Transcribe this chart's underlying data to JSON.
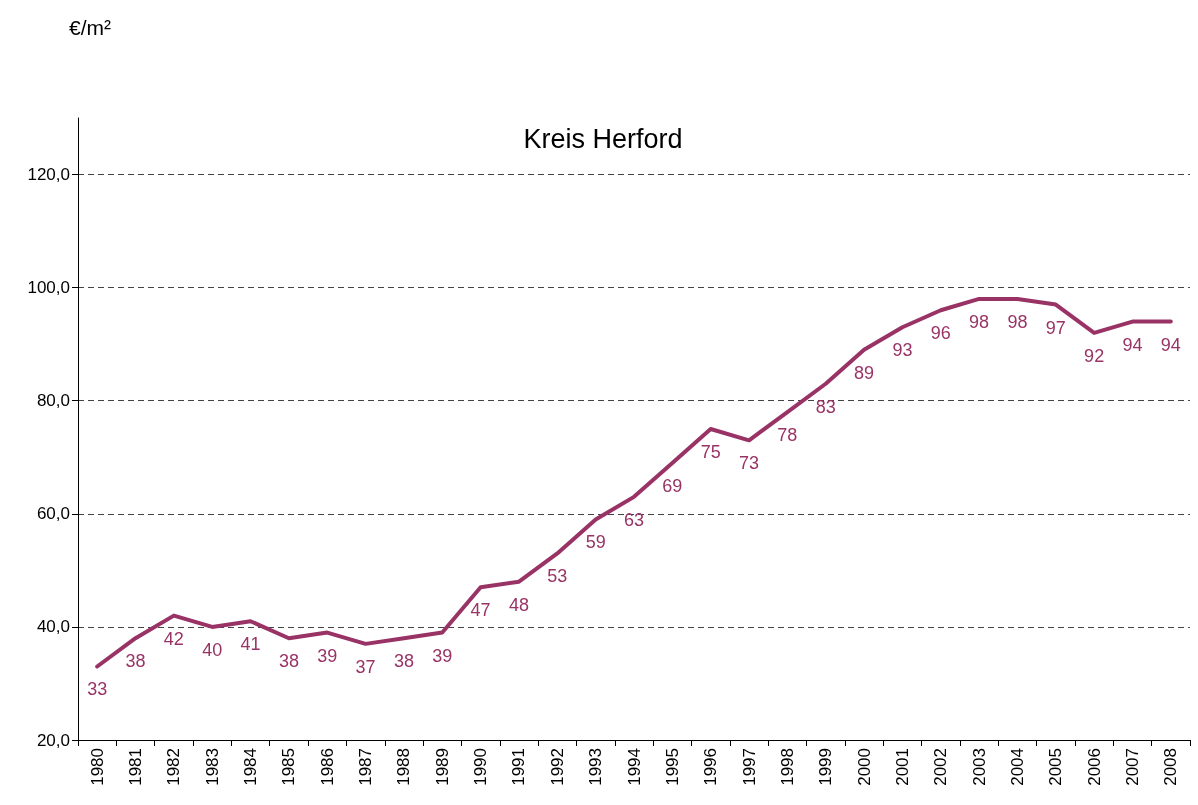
{
  "chart_data": {
    "type": "line",
    "title": "Kreis Herford",
    "ylabel": "€/m²",
    "categories": [
      "1980",
      "1981",
      "1982",
      "1983",
      "1984",
      "1985",
      "1986",
      "1987",
      "1988",
      "1989",
      "1990",
      "1991",
      "1992",
      "1993",
      "1994",
      "1995",
      "1996",
      "1997",
      "1998",
      "1999",
      "2000",
      "2001",
      "2002",
      "2003",
      "2004",
      "2005",
      "2006",
      "2007",
      "2008"
    ],
    "series": [
      {
        "color": "#993366",
        "values": [
          33,
          38,
          42,
          40,
          41,
          38,
          39,
          37,
          38,
          39,
          47,
          48,
          53,
          59,
          63,
          69,
          75,
          73,
          78,
          83,
          89,
          93,
          96,
          98,
          98,
          97,
          92,
          94,
          94
        ]
      }
    ],
    "ylim": [
      20,
      130
    ],
    "yticks": [
      {
        "value": 20,
        "label": "20,0"
      },
      {
        "value": 40,
        "label": "40,0"
      },
      {
        "value": 60,
        "label": "60,0"
      },
      {
        "value": 80,
        "label": "80,0"
      },
      {
        "value": 100,
        "label": "100,0"
      },
      {
        "value": 120,
        "label": "120,0"
      }
    ],
    "grid": "y",
    "data_labels": true,
    "line_style": "solid"
  }
}
